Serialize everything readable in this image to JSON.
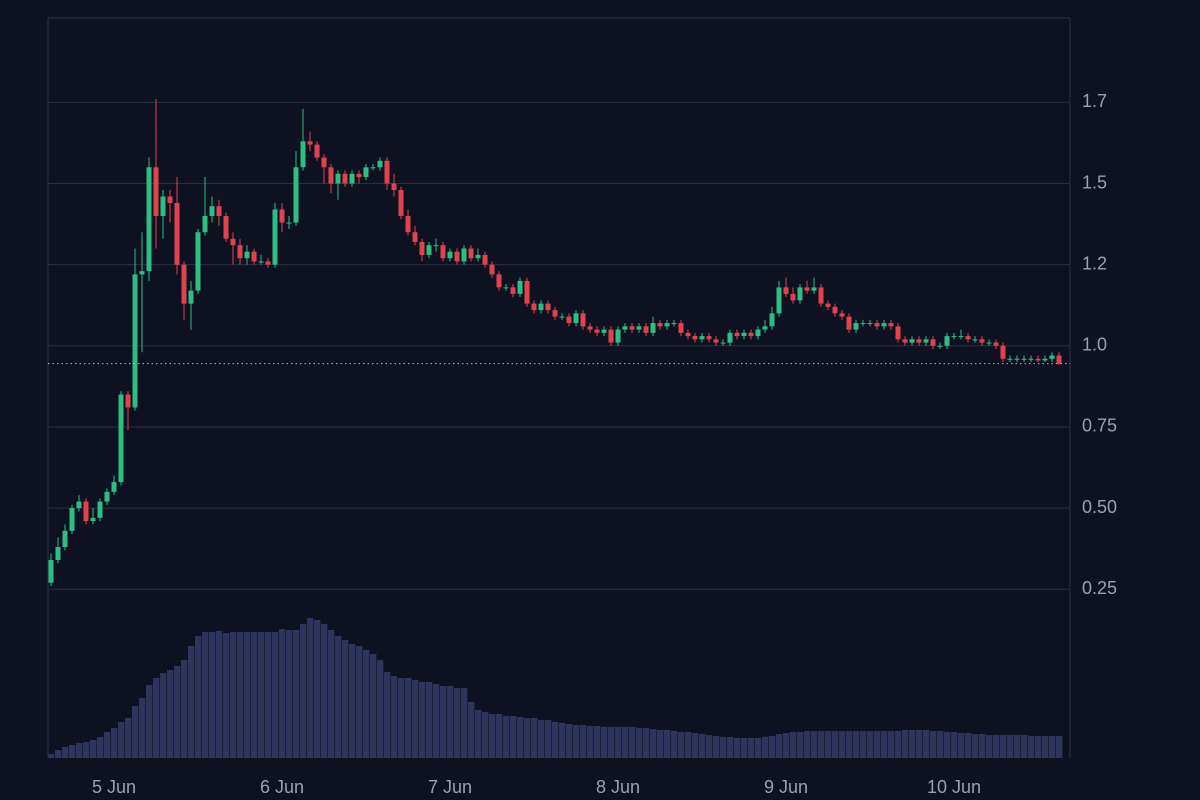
{
  "chart_data": {
    "type": "candlestick",
    "up_color": "#2ebd85",
    "down_color": "#e0434f",
    "volume_color": "#2f345c",
    "grid": true,
    "ylim": [
      -0.27,
      2.01
    ],
    "yticks": [
      0.25,
      {
        "value": 0.5,
        "label": "0.50"
      },
      0.75,
      {
        "value": 1,
        "label": "1.0"
      },
      {
        "value": 1.25,
        "label": "1.2"
      },
      1.5,
      {
        "value": 1.75,
        "label": "1.7"
      }
    ],
    "xticks": [
      {
        "value": 9,
        "label": "5 Jun"
      },
      {
        "value": 33,
        "label": "6 Jun"
      },
      {
        "value": 57,
        "label": "7 Jun"
      },
      {
        "value": 81,
        "label": "8 Jun"
      },
      {
        "value": 105,
        "label": "9 Jun"
      },
      {
        "value": 129,
        "label": "10 Jun"
      }
    ],
    "ohlc": [
      [
        0.27,
        0.36,
        0.26,
        0.34
      ],
      [
        0.34,
        0.41,
        0.33,
        0.38
      ],
      [
        0.38,
        0.45,
        0.37,
        0.43
      ],
      [
        0.43,
        0.51,
        0.42,
        0.5
      ],
      [
        0.5,
        0.54,
        0.49,
        0.52
      ],
      [
        0.52,
        0.53,
        0.45,
        0.46
      ],
      [
        0.46,
        0.5,
        0.45,
        0.47
      ],
      [
        0.47,
        0.53,
        0.46,
        0.52
      ],
      [
        0.52,
        0.56,
        0.51,
        0.55
      ],
      [
        0.55,
        0.6,
        0.54,
        0.58
      ],
      [
        0.58,
        0.86,
        0.57,
        0.85
      ],
      [
        0.85,
        0.86,
        0.74,
        0.81
      ],
      [
        0.81,
        1.3,
        0.8,
        1.22
      ],
      [
        1.22,
        1.35,
        0.98,
        1.23
      ],
      [
        1.23,
        1.58,
        1.2,
        1.55
      ],
      [
        1.55,
        1.76,
        1.3,
        1.4
      ],
      [
        1.4,
        1.48,
        1.33,
        1.46
      ],
      [
        1.46,
        1.48,
        1.38,
        1.44
      ],
      [
        1.44,
        1.52,
        1.22,
        1.25
      ],
      [
        1.25,
        1.26,
        1.08,
        1.13
      ],
      [
        1.13,
        1.2,
        1.05,
        1.17
      ],
      [
        1.17,
        1.36,
        1.16,
        1.35
      ],
      [
        1.35,
        1.52,
        1.34,
        1.4
      ],
      [
        1.4,
        1.46,
        1.38,
        1.43
      ],
      [
        1.43,
        1.45,
        1.37,
        1.4
      ],
      [
        1.4,
        1.41,
        1.32,
        1.33
      ],
      [
        1.33,
        1.35,
        1.25,
        1.31
      ],
      [
        1.31,
        1.33,
        1.25,
        1.27
      ],
      [
        1.27,
        1.31,
        1.25,
        1.29
      ],
      [
        1.29,
        1.3,
        1.25,
        1.26
      ],
      [
        1.26,
        1.28,
        1.25,
        1.26
      ],
      [
        1.26,
        1.27,
        1.24,
        1.25
      ],
      [
        1.25,
        1.44,
        1.24,
        1.42
      ],
      [
        1.42,
        1.44,
        1.35,
        1.38
      ],
      [
        1.38,
        1.4,
        1.36,
        1.38
      ],
      [
        1.38,
        1.6,
        1.37,
        1.55
      ],
      [
        1.55,
        1.73,
        1.54,
        1.63
      ],
      [
        1.63,
        1.66,
        1.6,
        1.62
      ],
      [
        1.62,
        1.63,
        1.57,
        1.58
      ],
      [
        1.58,
        1.59,
        1.5,
        1.55
      ],
      [
        1.55,
        1.56,
        1.47,
        1.5
      ],
      [
        1.5,
        1.54,
        1.45,
        1.53
      ],
      [
        1.53,
        1.54,
        1.49,
        1.5
      ],
      [
        1.5,
        1.54,
        1.49,
        1.53
      ],
      [
        1.53,
        1.54,
        1.5,
        1.52
      ],
      [
        1.52,
        1.56,
        1.51,
        1.55
      ],
      [
        1.55,
        1.56,
        1.54,
        1.55
      ],
      [
        1.55,
        1.58,
        1.54,
        1.57
      ],
      [
        1.57,
        1.58,
        1.48,
        1.5
      ],
      [
        1.5,
        1.53,
        1.46,
        1.48
      ],
      [
        1.48,
        1.49,
        1.39,
        1.4
      ],
      [
        1.4,
        1.42,
        1.34,
        1.35
      ],
      [
        1.35,
        1.37,
        1.31,
        1.32
      ],
      [
        1.32,
        1.33,
        1.26,
        1.28
      ],
      [
        1.28,
        1.32,
        1.27,
        1.31
      ],
      [
        1.31,
        1.33,
        1.29,
        1.31
      ],
      [
        1.31,
        1.32,
        1.26,
        1.27
      ],
      [
        1.27,
        1.3,
        1.26,
        1.29
      ],
      [
        1.29,
        1.3,
        1.25,
        1.26
      ],
      [
        1.26,
        1.31,
        1.25,
        1.3
      ],
      [
        1.3,
        1.31,
        1.26,
        1.27
      ],
      [
        1.27,
        1.3,
        1.26,
        1.28
      ],
      [
        1.28,
        1.29,
        1.24,
        1.25
      ],
      [
        1.25,
        1.26,
        1.21,
        1.22
      ],
      [
        1.22,
        1.23,
        1.17,
        1.18
      ],
      [
        1.18,
        1.19,
        1.17,
        1.18
      ],
      [
        1.18,
        1.19,
        1.15,
        1.16
      ],
      [
        1.16,
        1.21,
        1.15,
        1.2
      ],
      [
        1.2,
        1.21,
        1.12,
        1.13
      ],
      [
        1.13,
        1.14,
        1.1,
        1.11
      ],
      [
        1.11,
        1.14,
        1.1,
        1.13
      ],
      [
        1.13,
        1.14,
        1.1,
        1.11
      ],
      [
        1.11,
        1.12,
        1.08,
        1.09
      ],
      [
        1.09,
        1.1,
        1.08,
        1.09
      ],
      [
        1.09,
        1.1,
        1.06,
        1.07
      ],
      [
        1.07,
        1.11,
        1.06,
        1.1
      ],
      [
        1.1,
        1.11,
        1.05,
        1.06
      ],
      [
        1.06,
        1.07,
        1.04,
        1.05
      ],
      [
        1.05,
        1.06,
        1.03,
        1.04
      ],
      [
        1.04,
        1.06,
        1.03,
        1.05
      ],
      [
        1.05,
        1.06,
        1.0,
        1.01
      ],
      [
        1.01,
        1.06,
        1.0,
        1.05
      ],
      [
        1.05,
        1.07,
        1.04,
        1.06
      ],
      [
        1.06,
        1.07,
        1.04,
        1.05
      ],
      [
        1.05,
        1.07,
        1.04,
        1.06
      ],
      [
        1.06,
        1.07,
        1.03,
        1.04
      ],
      [
        1.04,
        1.09,
        1.03,
        1.07
      ],
      [
        1.07,
        1.08,
        1.05,
        1.06
      ],
      [
        1.06,
        1.08,
        1.05,
        1.07
      ],
      [
        1.07,
        1.08,
        1.06,
        1.07
      ],
      [
        1.07,
        1.08,
        1.03,
        1.04
      ],
      [
        1.04,
        1.05,
        1.02,
        1.03
      ],
      [
        1.03,
        1.04,
        1.01,
        1.02
      ],
      [
        1.02,
        1.04,
        1.01,
        1.03
      ],
      [
        1.03,
        1.04,
        1.01,
        1.02
      ],
      [
        1.02,
        1.03,
        1.0,
        1.01
      ],
      [
        1.01,
        1.02,
        1.0,
        1.01
      ],
      [
        1.01,
        1.05,
        1.0,
        1.04
      ],
      [
        1.04,
        1.05,
        1.02,
        1.03
      ],
      [
        1.03,
        1.05,
        1.02,
        1.04
      ],
      [
        1.04,
        1.05,
        1.02,
        1.03
      ],
      [
        1.03,
        1.06,
        1.02,
        1.05
      ],
      [
        1.05,
        1.08,
        1.04,
        1.06
      ],
      [
        1.06,
        1.12,
        1.05,
        1.1
      ],
      [
        1.1,
        1.2,
        1.09,
        1.18
      ],
      [
        1.18,
        1.21,
        1.15,
        1.16
      ],
      [
        1.16,
        1.18,
        1.13,
        1.14
      ],
      [
        1.14,
        1.19,
        1.13,
        1.18
      ],
      [
        1.18,
        1.2,
        1.16,
        1.17
      ],
      [
        1.17,
        1.21,
        1.16,
        1.18
      ],
      [
        1.18,
        1.19,
        1.12,
        1.13
      ],
      [
        1.13,
        1.14,
        1.11,
        1.12
      ],
      [
        1.12,
        1.13,
        1.09,
        1.1
      ],
      [
        1.1,
        1.11,
        1.08,
        1.09
      ],
      [
        1.09,
        1.1,
        1.04,
        1.05
      ],
      [
        1.05,
        1.08,
        1.04,
        1.07
      ],
      [
        1.07,
        1.08,
        1.06,
        1.07
      ],
      [
        1.07,
        1.08,
        1.06,
        1.07
      ],
      [
        1.07,
        1.08,
        1.05,
        1.06
      ],
      [
        1.06,
        1.08,
        1.05,
        1.07
      ],
      [
        1.07,
        1.08,
        1.05,
        1.06
      ],
      [
        1.06,
        1.07,
        1.01,
        1.02
      ],
      [
        1.02,
        1.03,
        1.0,
        1.01
      ],
      [
        1.01,
        1.03,
        1.0,
        1.02
      ],
      [
        1.02,
        1.03,
        1.0,
        1.01
      ],
      [
        1.01,
        1.03,
        1.0,
        1.02
      ],
      [
        1.02,
        1.03,
        0.99,
        1.0
      ],
      [
        1.0,
        1.01,
        0.99,
        1.0
      ],
      [
        1.0,
        1.04,
        0.99,
        1.03
      ],
      [
        1.03,
        1.04,
        1.02,
        1.03
      ],
      [
        1.03,
        1.05,
        1.02,
        1.03
      ],
      [
        1.03,
        1.04,
        1.01,
        1.02
      ],
      [
        1.02,
        1.03,
        1.01,
        1.02
      ],
      [
        1.02,
        1.03,
        1.0,
        1.01
      ],
      [
        1.01,
        1.02,
        1.0,
        1.01
      ],
      [
        1.01,
        1.02,
        0.99,
        1.0
      ],
      [
        1.0,
        1.01,
        0.95,
        0.96
      ],
      [
        0.96,
        0.97,
        0.95,
        0.96
      ],
      [
        0.96,
        0.97,
        0.95,
        0.96
      ],
      [
        0.96,
        0.97,
        0.95,
        0.96
      ],
      [
        0.96,
        0.97,
        0.95,
        0.96
      ],
      [
        0.96,
        0.97,
        0.95,
        0.955
      ],
      [
        0.955,
        0.97,
        0.95,
        0.96
      ],
      [
        0.96,
        0.98,
        0.95,
        0.97
      ],
      [
        0.97,
        0.98,
        0.94,
        0.945
      ]
    ],
    "volume": [
      4,
      8,
      11,
      13,
      15,
      16,
      18,
      21,
      26,
      30,
      36,
      40,
      52,
      60,
      73,
      80,
      85,
      88,
      92,
      98,
      112,
      122,
      126,
      126,
      127,
      125,
      126,
      126,
      126,
      126,
      126,
      126,
      126,
      129,
      128,
      128,
      134,
      140,
      138,
      134,
      128,
      122,
      118,
      114,
      112,
      108,
      104,
      98,
      86,
      82,
      80,
      80,
      78,
      76,
      76,
      74,
      72,
      72,
      70,
      70,
      56,
      48,
      46,
      44,
      44,
      42,
      42,
      41,
      40,
      40,
      38,
      38,
      36,
      35,
      34,
      33,
      33,
      32,
      32,
      31,
      31,
      31,
      31,
      31,
      30,
      30,
      29,
      28,
      28,
      27,
      26,
      26,
      25,
      24,
      23,
      22,
      21,
      21,
      20,
      20,
      20,
      20,
      21,
      22,
      24,
      25,
      26,
      26,
      27,
      27,
      27,
      27,
      27,
      27,
      27,
      27,
      27,
      27,
      27,
      27,
      27,
      27,
      28,
      28,
      28,
      28,
      27,
      27,
      26,
      26,
      25,
      25,
      24,
      24,
      23,
      23,
      23,
      23,
      23,
      23,
      22,
      22,
      22,
      22,
      22
    ]
  }
}
